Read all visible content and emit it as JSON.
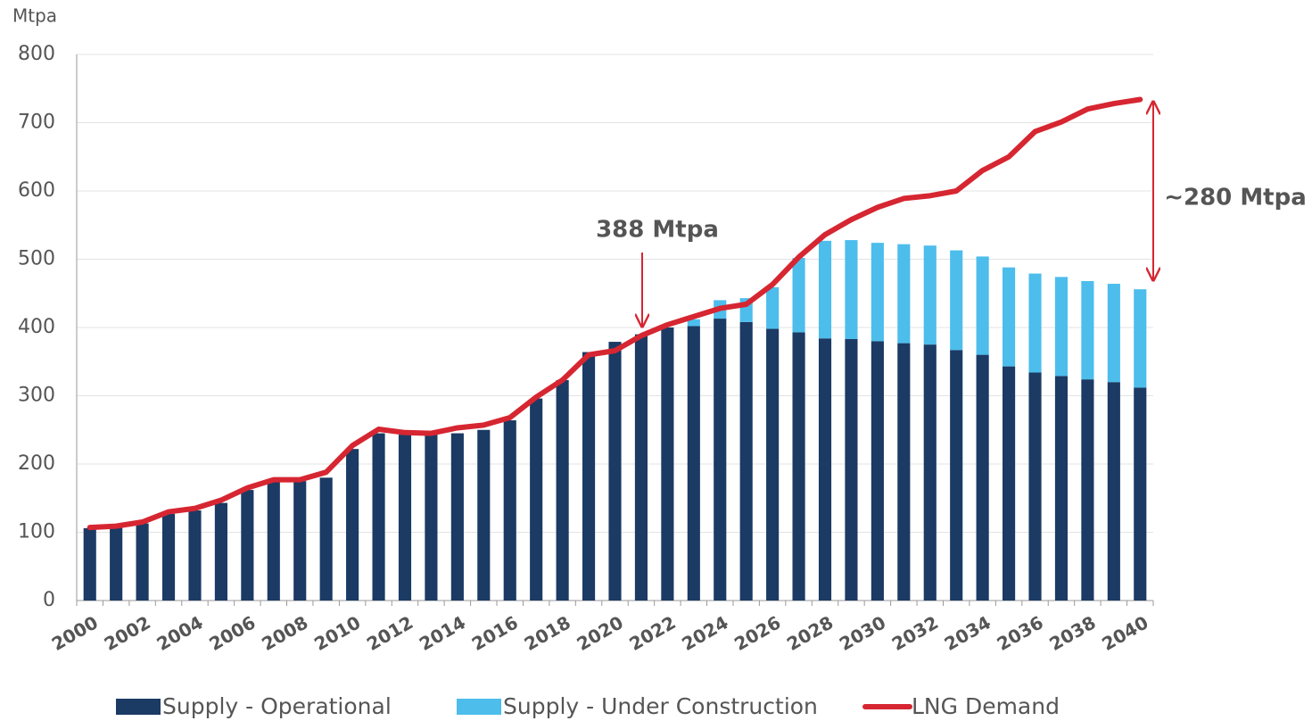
{
  "chart_data": {
    "type": "bar",
    "y_axis_label": "Mtpa",
    "categories": [
      "2000",
      null,
      "2002",
      null,
      "2004",
      null,
      "2006",
      null,
      "2008",
      null,
      "2010",
      null,
      "2012",
      null,
      "2014",
      null,
      "2016",
      null,
      "2018",
      null,
      "2020",
      null,
      "2022",
      null,
      "2024",
      null,
      "2026",
      null,
      "2028",
      null,
      "2030",
      null,
      "2032",
      null,
      "2034",
      null,
      "2036",
      null,
      "2038",
      null,
      "2040"
    ],
    "series": [
      {
        "name": "Supply - Operational",
        "type": "bar",
        "color": "#1b3a64",
        "values": [
          106,
          107,
          113,
          127,
          132,
          143,
          162,
          175,
          175,
          180,
          222,
          245,
          243,
          243,
          245,
          250,
          264,
          296,
          323,
          364,
          379,
          390,
          400,
          402,
          413,
          408,
          398,
          393,
          384,
          383,
          380,
          377,
          375,
          367,
          360,
          343,
          334,
          329,
          324,
          320,
          312
        ]
      },
      {
        "name": "Supply - Under Construction",
        "type": "bar",
        "color": "#4dbdec",
        "values": [
          0,
          0,
          0,
          0,
          0,
          0,
          0,
          0,
          0,
          0,
          0,
          0,
          0,
          0,
          0,
          0,
          0,
          0,
          0,
          0,
          0,
          0,
          0,
          10,
          27,
          35,
          61,
          109,
          143,
          145,
          144,
          145,
          145,
          146,
          144,
          145,
          145,
          145,
          144,
          144,
          144
        ]
      },
      {
        "name": "LNG Demand",
        "type": "line",
        "color": "#d62631",
        "values": [
          107,
          109,
          115,
          130,
          135,
          147,
          165,
          177,
          177,
          188,
          227,
          251,
          246,
          245,
          253,
          257,
          268,
          298,
          323,
          360,
          366,
          388,
          404,
          416,
          428,
          434,
          463,
          503,
          536,
          558,
          576,
          589,
          593,
          600,
          630,
          650,
          687,
          701,
          720,
          728,
          734
        ]
      }
    ],
    "stacked": true,
    "ylim": [
      0,
      800
    ],
    "yticks": [
      0,
      100,
      200,
      300,
      400,
      500,
      600,
      700,
      800
    ],
    "grid": true,
    "annotations": [
      "388 Mtpa",
      "~280 Mtpa"
    ],
    "annotation_color": "#d62631"
  }
}
